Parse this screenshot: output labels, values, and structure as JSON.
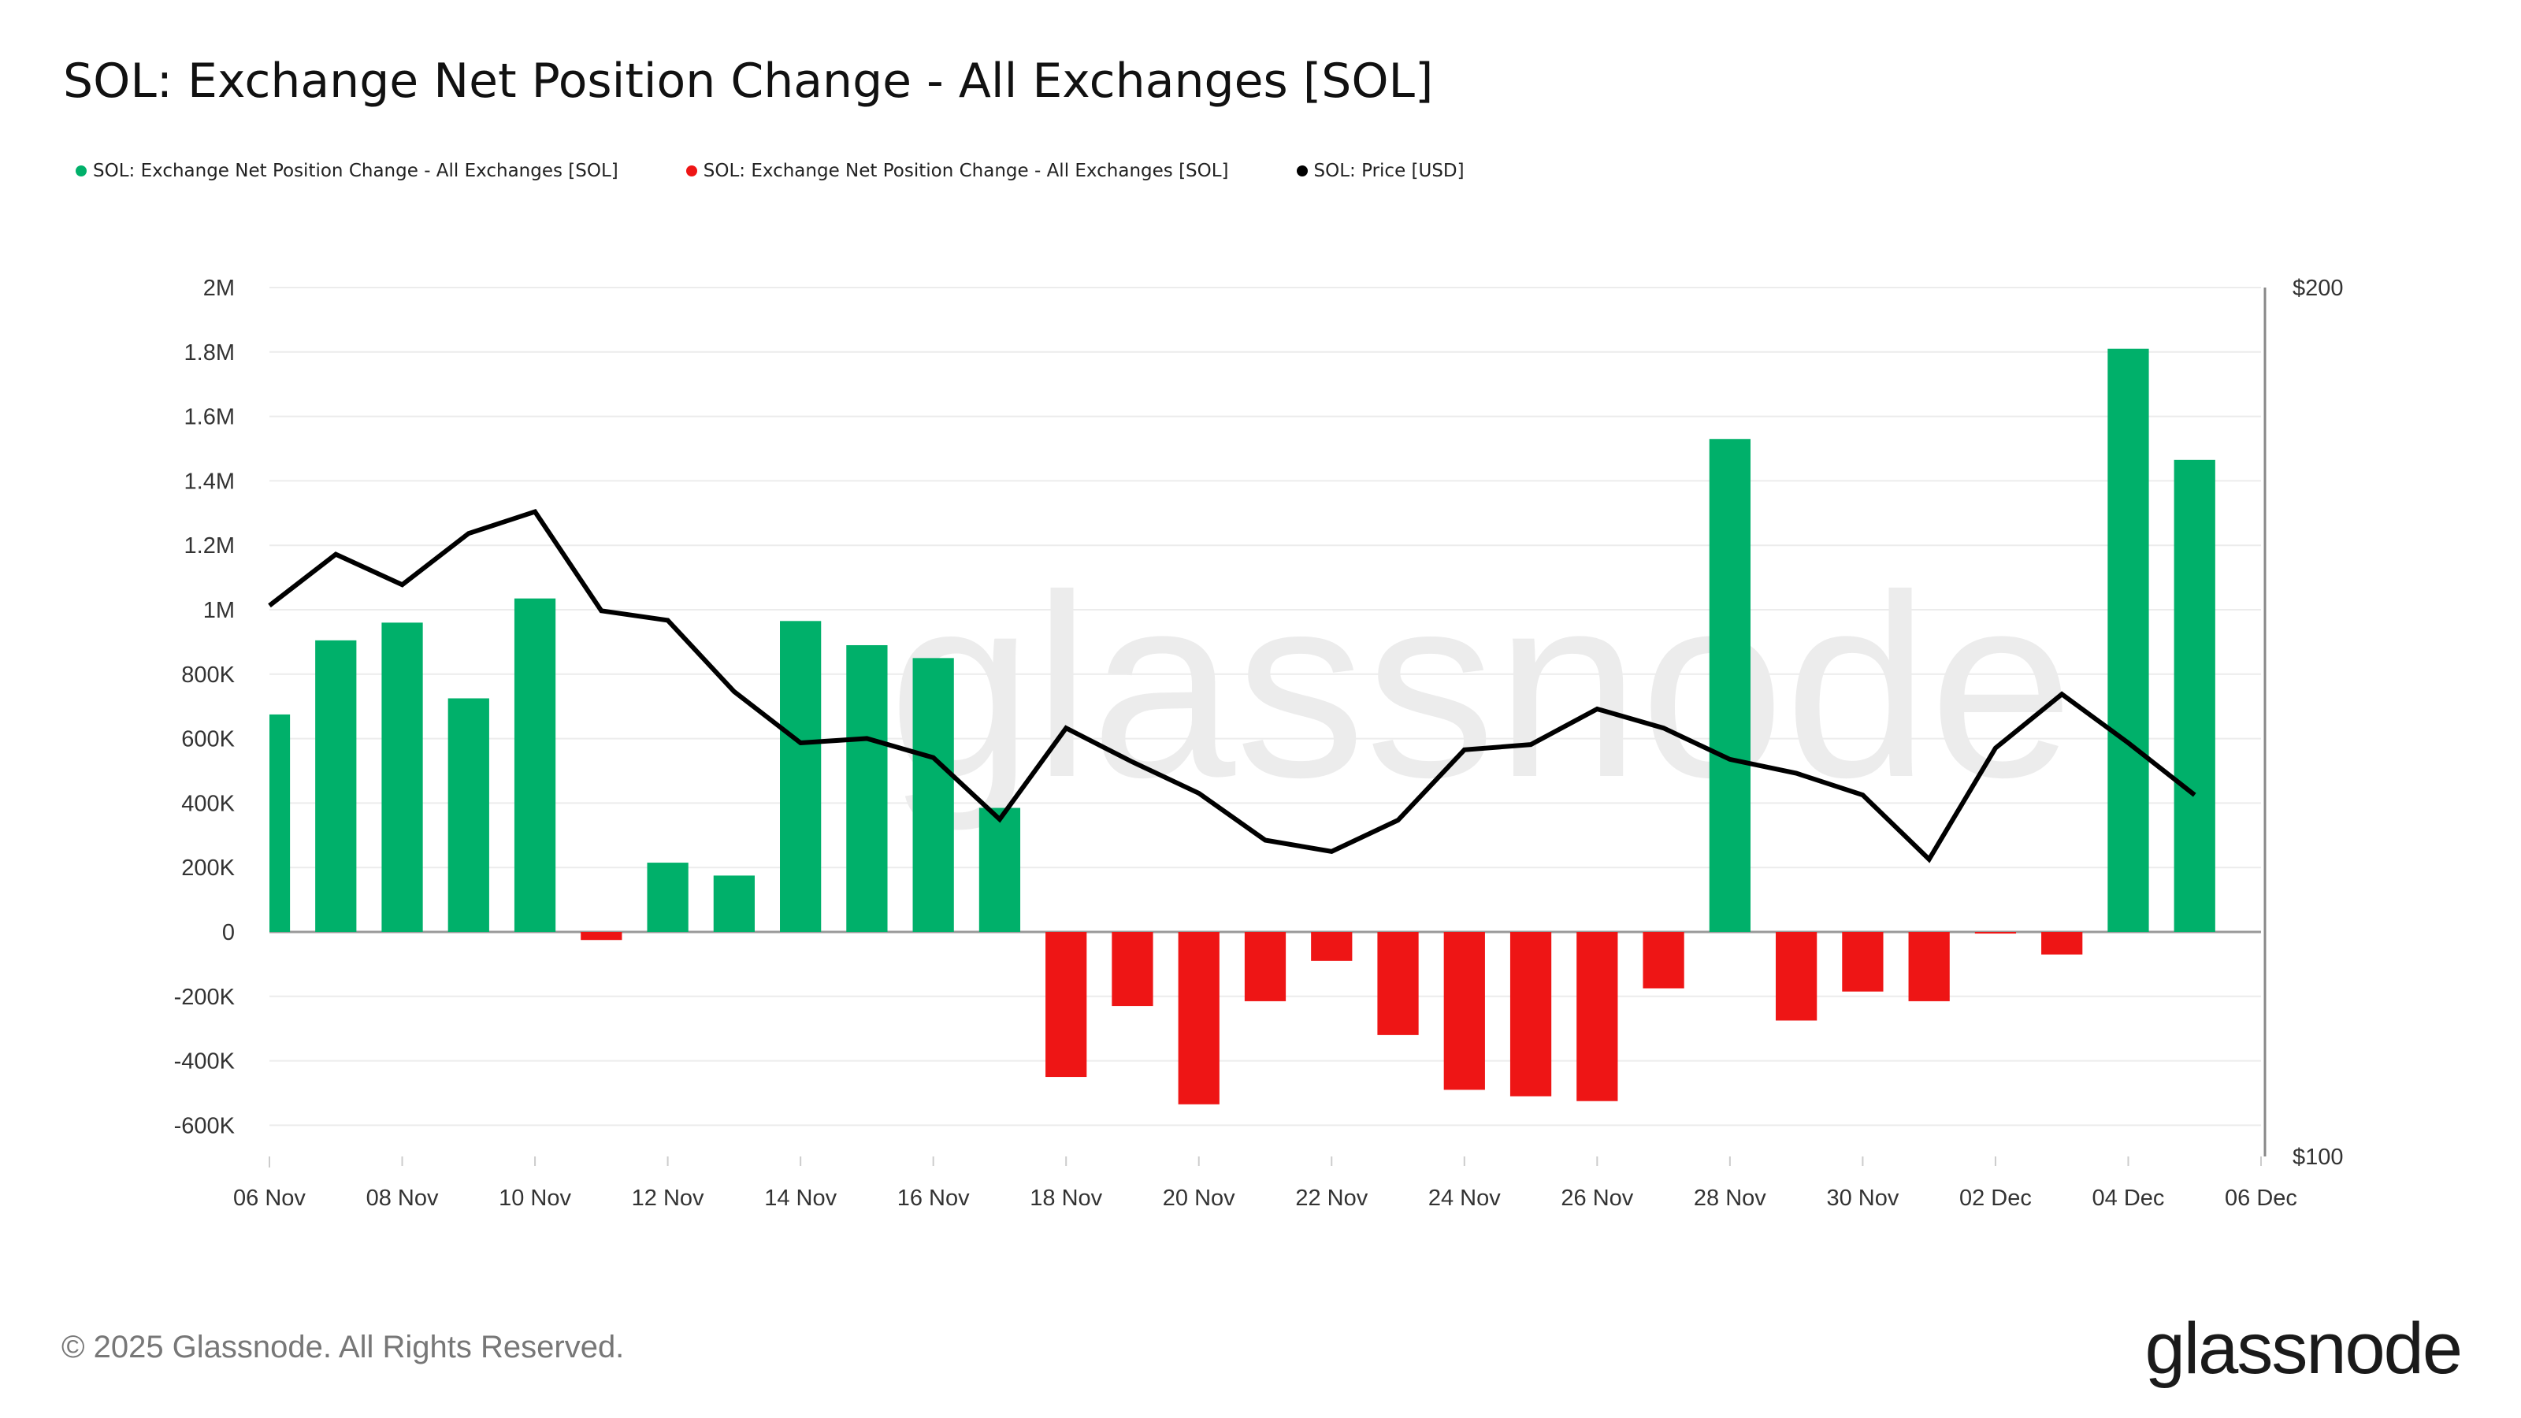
{
  "title": "SOL: Exchange Net Position Change - All Exchanges [SOL]",
  "legend": [
    {
      "label": "SOL: Exchange Net Position Change - All Exchanges [SOL]",
      "color": "#00b06a"
    },
    {
      "label": "SOL: Exchange Net Position Change - All Exchanges [SOL]",
      "color": "#ee1515"
    },
    {
      "label": "SOL: Price [USD]",
      "color": "#000000"
    }
  ],
  "footer": "© 2025 Glassnode. All Rights Reserved.",
  "logo": "glassnode",
  "watermark": "glassnode",
  "chart_data": {
    "type": "bar",
    "title": "SOL: Exchange Net Position Change - All Exchanges [SOL]",
    "dates": [
      "06 Nov",
      "07 Nov",
      "08 Nov",
      "09 Nov",
      "10 Nov",
      "11 Nov",
      "12 Nov",
      "13 Nov",
      "14 Nov",
      "15 Nov",
      "16 Nov",
      "17 Nov",
      "18 Nov",
      "19 Nov",
      "20 Nov",
      "21 Nov",
      "22 Nov",
      "23 Nov",
      "24 Nov",
      "25 Nov",
      "26 Nov",
      "27 Nov",
      "28 Nov",
      "29 Nov",
      "30 Nov",
      "01 Dec",
      "02 Dec",
      "03 Dec",
      "04 Dec",
      "05 Dec"
    ],
    "x_ticks": [
      "06 Nov",
      "08 Nov",
      "10 Nov",
      "12 Nov",
      "14 Nov",
      "16 Nov",
      "18 Nov",
      "20 Nov",
      "22 Nov",
      "24 Nov",
      "26 Nov",
      "28 Nov",
      "30 Nov",
      "02 Dec",
      "04 Dec",
      "06 Dec"
    ],
    "series": [
      {
        "name": "SOL: Exchange Net Position Change - All Exchanges [SOL]",
        "type": "bar",
        "axis": "left",
        "positive_color": "#00b06a",
        "negative_color": "#ee1515",
        "values": [
          675000,
          905000,
          960000,
          725000,
          1035000,
          -25000,
          215000,
          175000,
          965000,
          890000,
          850000,
          385000,
          -450000,
          -230000,
          -535000,
          -215000,
          -90000,
          -320000,
          -490000,
          -510000,
          -525000,
          -175000,
          1530000,
          -275000,
          -185000,
          -215000,
          -5000,
          -70000,
          1810000,
          1465000
        ]
      },
      {
        "name": "SOL: Price [USD]",
        "type": "line",
        "axis": "right",
        "color": "#000000",
        "values": [
          163.4,
          169.3,
          165.8,
          171.7,
          174.2,
          162.8,
          161.7,
          153.5,
          147.6,
          148.1,
          145.9,
          138.8,
          149.3,
          145.4,
          141.8,
          136.4,
          135.1,
          138.7,
          146.8,
          147.4,
          151.5,
          149.3,
          145.7,
          144.1,
          141.6,
          134.2,
          147.0,
          153.2,
          147.6,
          141.6
        ]
      }
    ],
    "y_left": {
      "ylim": [
        -700000,
        2000000
      ],
      "ticks": [
        2000000,
        1800000,
        1600000,
        1400000,
        1200000,
        1000000,
        800000,
        600000,
        400000,
        200000,
        0,
        -200000,
        -400000,
        -600000
      ],
      "tick_labels": [
        "2M",
        "1.8M",
        "1.6M",
        "1.4M",
        "1.2M",
        "1M",
        "800K",
        "600K",
        "400K",
        "200K",
        "0",
        "-200K",
        "-400K",
        "-600K"
      ]
    },
    "y_right": {
      "ylim": [
        100,
        200
      ],
      "ticks": [
        200,
        100
      ],
      "tick_labels": [
        "$200",
        "$100"
      ]
    },
    "grid": true,
    "legend_position": "top-left"
  }
}
